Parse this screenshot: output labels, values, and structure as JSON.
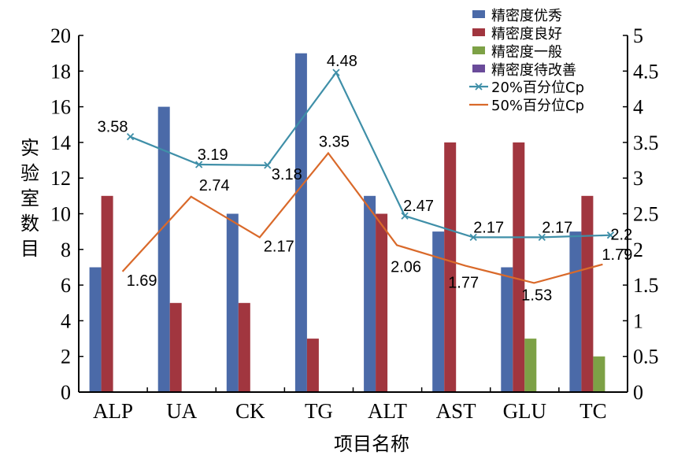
{
  "chart_data": {
    "type": "bar",
    "xlabel": "项目名称",
    "ylabel": "实验室数目",
    "categories": [
      "ALP",
      "UA",
      "CK",
      "TG",
      "ALT",
      "AST",
      "GLU",
      "TC"
    ],
    "ylim": [
      0,
      20
    ],
    "y2lim": [
      0,
      5
    ],
    "yticks": [
      "0",
      "2",
      "4",
      "6",
      "8",
      "10",
      "12",
      "14",
      "16",
      "18",
      "20"
    ],
    "y2ticks": [
      "0",
      "0.5",
      "1",
      "1.5",
      "2",
      "2.5",
      "3",
      "3.5",
      "4",
      "4.5",
      "5"
    ],
    "legend_position": "top-right",
    "grid": false,
    "bar_series": [
      {
        "name": "精密度优秀",
        "color": "#4B6AA8",
        "values": [
          7,
          16,
          10,
          19,
          11,
          9,
          7,
          9
        ]
      },
      {
        "name": "精密度良好",
        "color": "#A1363F",
        "values": [
          11,
          5,
          5,
          3,
          10,
          14,
          14,
          11
        ]
      },
      {
        "name": "精密度一般",
        "color": "#7DA146",
        "values": [
          0,
          0,
          0,
          0,
          0,
          0,
          3,
          2
        ]
      },
      {
        "name": "精密度待改善",
        "color": "#6A4B9A",
        "values": [
          0,
          0,
          0,
          0,
          0,
          0,
          0,
          0
        ]
      }
    ],
    "line_series": [
      {
        "name": "20%百分位Cp",
        "color": "#3F8FA8",
        "marker": "x",
        "axis": "right",
        "values": [
          3.58,
          3.19,
          3.18,
          4.48,
          2.47,
          2.17,
          2.17,
          2.2
        ],
        "labels": [
          "3.58",
          "3.19",
          "3.18",
          "4.48",
          "2.47",
          "2.17",
          "2.17",
          "2.2"
        ]
      },
      {
        "name": "50%百分位Cp",
        "color": "#D9692A",
        "marker": "none",
        "axis": "right",
        "values": [
          1.69,
          2.74,
          2.17,
          3.35,
          2.06,
          1.77,
          1.53,
          1.79
        ],
        "labels": [
          "1.69",
          "2.74",
          "2.17",
          "3.35",
          "2.06",
          "1.77",
          "1.53",
          "1.79"
        ]
      }
    ]
  }
}
